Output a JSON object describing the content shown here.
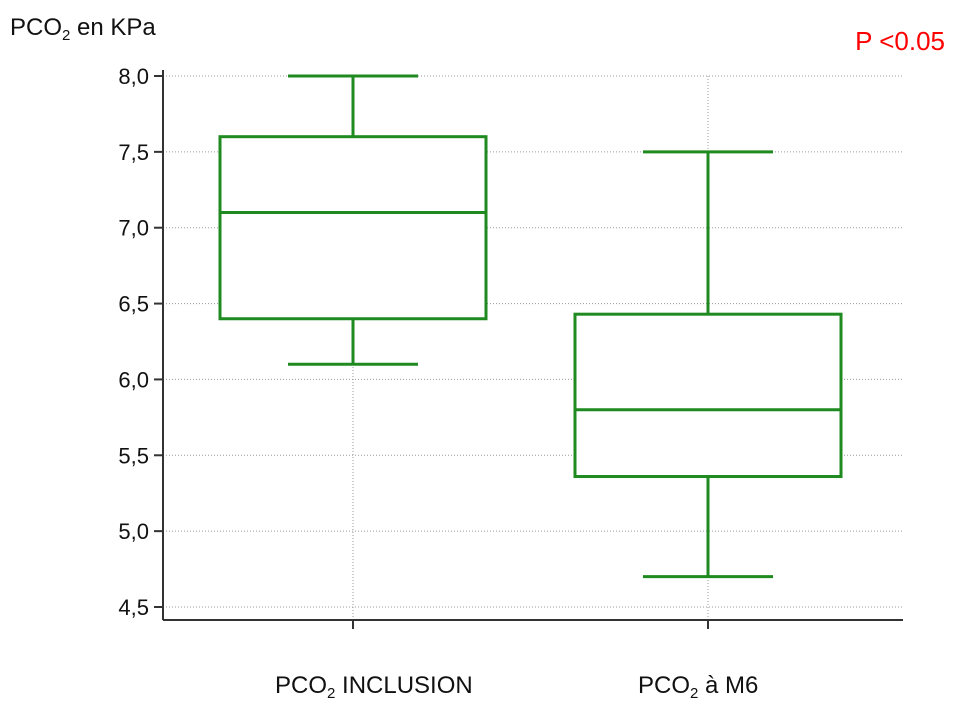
{
  "chart_data": {
    "type": "boxplot",
    "ylabel": {
      "main": "PCO",
      "sub": "2",
      "rest": " en KPa"
    },
    "annotation": {
      "text": "P <0.05",
      "color": "#ff0000"
    },
    "ylim": [
      4.5,
      8.0
    ],
    "yticks": [
      8.0,
      7.5,
      7.0,
      6.5,
      6.0,
      5.5,
      5.0,
      4.5
    ],
    "ytick_labels": [
      "8,0",
      "7,5",
      "7,0",
      "6,5",
      "6,0",
      "5,5",
      "5,0",
      "4,5"
    ],
    "categories": [
      {
        "main": "PCO",
        "sub": "2",
        "rest": " INCLUSION"
      },
      {
        "main": "PCO",
        "sub": "2",
        "rest": " à M6"
      }
    ],
    "series": [
      {
        "whisker_low": 6.1,
        "q1": 6.4,
        "median": 7.1,
        "q3": 7.6,
        "whisker_high": 8.0
      },
      {
        "whisker_low": 4.7,
        "q1": 5.36,
        "median": 5.8,
        "q3": 6.43,
        "whisker_high": 7.5
      }
    ],
    "box_color": "#1f8a1f",
    "grid": true
  }
}
